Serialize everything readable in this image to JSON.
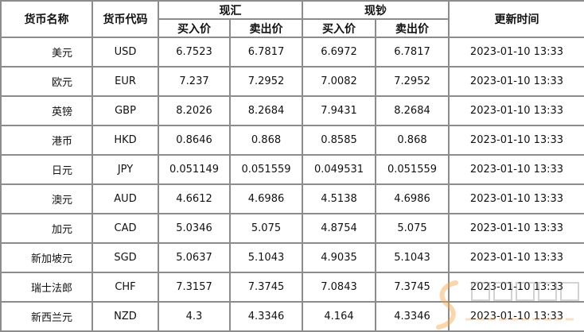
{
  "table": {
    "headers": {
      "name": "货币名称",
      "code": "货币代码",
      "spot_exchange": "现汇",
      "spot_cash": "现钞",
      "update_time": "更新时间",
      "buy": "买入价",
      "sell": "卖出价"
    },
    "rows": [
      {
        "name": "美元",
        "code": "USD",
        "fx_buy": "6.7523",
        "fx_sell": "6.7817",
        "cash_buy": "6.6972",
        "cash_sell": "6.7817",
        "time": "2023-01-10  13:33"
      },
      {
        "name": "欧元",
        "code": "EUR",
        "fx_buy": "7.237",
        "fx_sell": "7.2952",
        "cash_buy": "7.0082",
        "cash_sell": "7.2952",
        "time": "2023-01-10  13:33"
      },
      {
        "name": "英镑",
        "code": "GBP",
        "fx_buy": "8.2026",
        "fx_sell": "8.2684",
        "cash_buy": "7.9431",
        "cash_sell": "8.2684",
        "time": "2023-01-10  13:33"
      },
      {
        "name": "港币",
        "code": "HKD",
        "fx_buy": "0.8646",
        "fx_sell": "0.868",
        "cash_buy": "0.8585",
        "cash_sell": "0.868",
        "time": "2023-01-10  13:33"
      },
      {
        "name": "日元",
        "code": "JPY",
        "fx_buy": "0.051149",
        "fx_sell": "0.051559",
        "cash_buy": "0.049531",
        "cash_sell": "0.051559",
        "time": "2023-01-10  13:33"
      },
      {
        "name": "澳元",
        "code": "AUD",
        "fx_buy": "4.6612",
        "fx_sell": "4.6986",
        "cash_buy": "4.5138",
        "cash_sell": "4.6986",
        "time": "2023-01-10  13:33"
      },
      {
        "name": "加元",
        "code": "CAD",
        "fx_buy": "5.0346",
        "fx_sell": "5.075",
        "cash_buy": "4.8754",
        "cash_sell": "5.075",
        "time": "2023-01-10  13:33"
      },
      {
        "name": "新加坡元",
        "code": "SGD",
        "fx_buy": "5.0637",
        "fx_sell": "5.1043",
        "cash_buy": "4.9035",
        "cash_sell": "5.1043",
        "time": "2023-01-10  13:33"
      },
      {
        "name": "瑞士法郎",
        "code": "CHF",
        "fx_buy": "7.3157",
        "fx_sell": "7.3745",
        "cash_buy": "7.0843",
        "cash_sell": "7.3745",
        "time": "2023-01-10  13:33"
      },
      {
        "name": "新西兰元",
        "code": "NZD",
        "fx_buy": "4.3",
        "fx_sell": "4.3346",
        "cash_buy": "4.164",
        "cash_sell": "4.3346",
        "time": "2023-01-10  13:33"
      }
    ]
  },
  "watermark": {
    "cn": "南方财富网",
    "en": "southmoney.com"
  },
  "colors": {
    "border": "#8c8c8c",
    "text": "#111111"
  }
}
